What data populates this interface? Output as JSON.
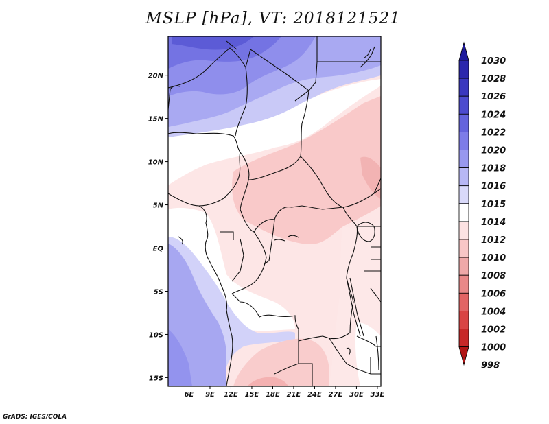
{
  "title": "MSLP [hPa], VT: 2018121521",
  "credit": "GrADS: IGES/COLA",
  "map": {
    "lon_range": [
      3,
      33.5
    ],
    "lat_range": [
      -16,
      24.5
    ],
    "y_ticks": [
      {
        "value": 20,
        "label": "20N"
      },
      {
        "value": 15,
        "label": "15N"
      },
      {
        "value": 10,
        "label": "10N"
      },
      {
        "value": 5,
        "label": "5N"
      },
      {
        "value": 0,
        "label": "EQ"
      },
      {
        "value": -5,
        "label": "5S"
      },
      {
        "value": -10,
        "label": "10S"
      },
      {
        "value": -15,
        "label": "15S"
      }
    ],
    "x_ticks": [
      {
        "value": 6,
        "label": "6E"
      },
      {
        "value": 9,
        "label": "9E"
      },
      {
        "value": 12,
        "label": "12E"
      },
      {
        "value": 15,
        "label": "15E"
      },
      {
        "value": 18,
        "label": "18E"
      },
      {
        "value": 21,
        "label": "21E"
      },
      {
        "value": 24,
        "label": "24E"
      },
      {
        "value": 27,
        "label": "27E"
      },
      {
        "value": 30,
        "label": "30E"
      },
      {
        "value": 33,
        "label": "33E"
      }
    ]
  },
  "colorbar": {
    "levels": [
      "1030",
      "1028",
      "1026",
      "1024",
      "1022",
      "1020",
      "1018",
      "1016",
      "1015",
      "1014",
      "1012",
      "1010",
      "1008",
      "1006",
      "1004",
      "1002",
      "1000",
      "998"
    ],
    "colors": [
      "#1e1a9c",
      "#2b27ad",
      "#3a37bf",
      "#4d4bcf",
      "#6463dd",
      "#7d7ce8",
      "#9898ef",
      "#b7b7f5",
      "#d9d9fa",
      "#ffffff",
      "#fde2e2",
      "#f8c6c6",
      "#efa8a8",
      "#e98888",
      "#e26464",
      "#d94343",
      "#c72828",
      "#b01515"
    ]
  }
}
